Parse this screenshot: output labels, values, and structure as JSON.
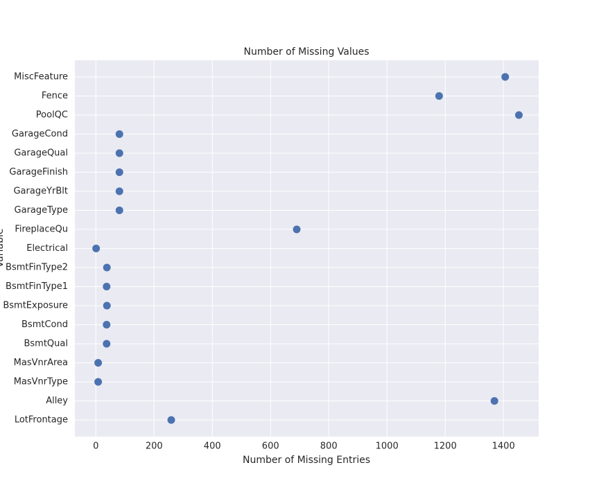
{
  "chart_data": {
    "type": "scatter",
    "title": "Number of Missing Values",
    "x_label": "Number of Missing Entries",
    "y_label": "Variable",
    "categories": [
      "MiscFeature",
      "Fence",
      "PoolQC",
      "GarageCond",
      "GarageQual",
      "GarageFinish",
      "GarageYrBlt",
      "GarageType",
      "FireplaceQu",
      "Electrical",
      "BsmtFinType2",
      "BsmtFinType1",
      "BsmtExposure",
      "BsmtCond",
      "BsmtQual",
      "MasVnrArea",
      "MasVnrType",
      "Alley",
      "LotFrontage"
    ],
    "values": [
      1406,
      1179,
      1453,
      81,
      81,
      81,
      81,
      81,
      690,
      1,
      38,
      37,
      38,
      37,
      37,
      8,
      8,
      1369,
      259
    ],
    "color": "#4c72b0",
    "xlim": [
      -72,
      1521
    ],
    "xticks": [
      0,
      200,
      400,
      600,
      800,
      1000,
      1200,
      1400
    ],
    "grid": true
  }
}
